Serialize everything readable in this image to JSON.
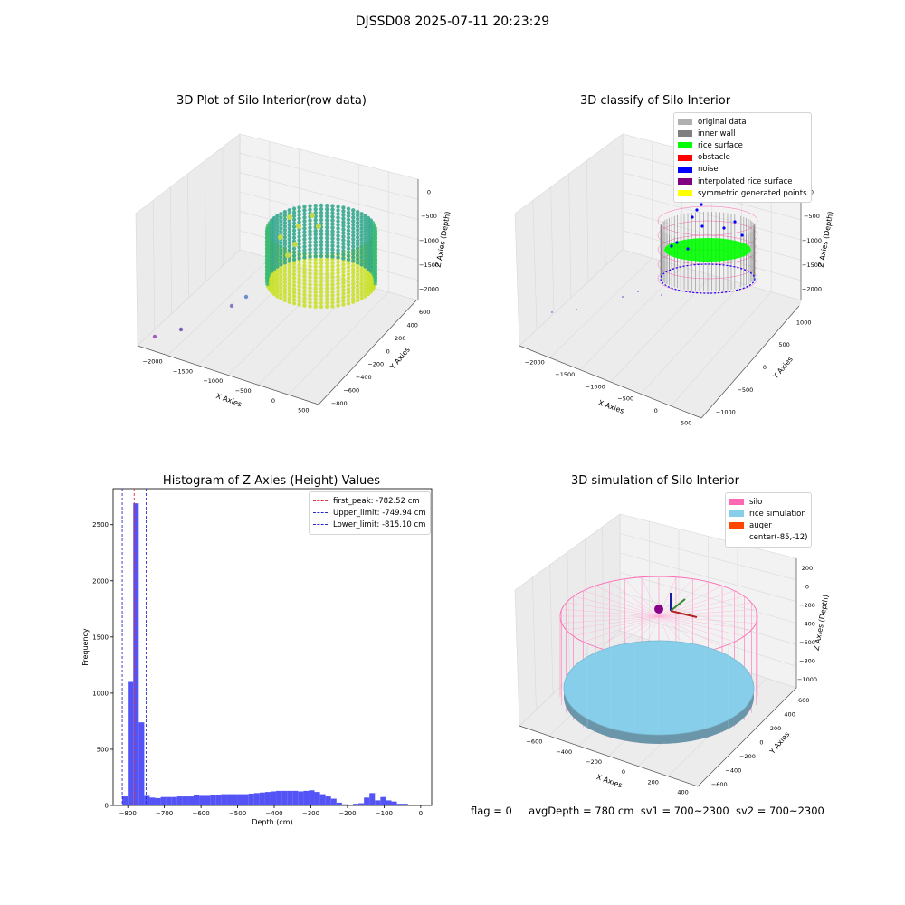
{
  "suptitle": "DJSSD08 2025-07-11 20:23:29",
  "footer": {
    "flag": "flag = 0",
    "avg_depth": "avgDepth = 780 cm",
    "sv1": "sv1 = 700~2300",
    "sv2": "sv2 = 700~2300"
  },
  "colors": {
    "histogram_bar": "#4a4af5",
    "first_peak_line": "#e03030",
    "limit_line": "#2a2ad0",
    "silo": "#ff69b4",
    "rice_simulation": "#87ceeb",
    "auger": "#ff4500",
    "original_data": "#b0b0b0",
    "inner_wall": "#808080",
    "rice_surface": "#00ff00",
    "obstacle": "#ff0000",
    "noise": "#0000ff",
    "interpolated_rice_surface": "#800080",
    "symmetric_generated_points": "#ffff00"
  },
  "panels": {
    "raw": {
      "title": "3D Plot of Silo Interior(row data)",
      "xlabel": "X Axies",
      "ylabel": "Y Axies",
      "zlabel": "Z Axies (Depth)",
      "x_ticks": [
        "-2000",
        "-1500",
        "-1000",
        "-500",
        "0",
        "500"
      ],
      "y_ticks": [
        "600",
        "400",
        "200",
        "0",
        "-200",
        "-400",
        "-600",
        "-800"
      ],
      "z_ticks": [
        "0",
        "-500",
        "-1000",
        "-1500",
        "-2000"
      ]
    },
    "classify": {
      "title": "3D classify of Silo Interior",
      "xlabel": "X Axies",
      "ylabel": "Y Axies",
      "zlabel": "Z Axies (Depth)",
      "x_ticks": [
        "-2000",
        "-1500",
        "-1000",
        "-500",
        "0",
        "500"
      ],
      "y_ticks": [
        "1000",
        "500",
        "0",
        "-500",
        "-1000"
      ],
      "z_ticks": [
        "0",
        "-500",
        "-1000",
        "-1500",
        "-2000"
      ],
      "legend": [
        "original data",
        "inner wall",
        "rice surface",
        "obstacle",
        "noise",
        "interpolated rice surface",
        "symmetric generated points"
      ]
    },
    "simulation": {
      "title": "3D simulation of Silo Interior",
      "xlabel": "X Axies",
      "ylabel": "Y Axies",
      "zlabel": "Z Axies (Depth)",
      "x_ticks": [
        "-600",
        "-400",
        "-200",
        "0",
        "200",
        "400"
      ],
      "y_ticks": [
        "600",
        "400",
        "200",
        "0",
        "-200",
        "-400",
        "-600"
      ],
      "z_ticks": [
        "200",
        "0",
        "-200",
        "-400",
        "-600",
        "-800",
        "-1000"
      ],
      "legend": [
        "silo",
        "rice simulation",
        "auger",
        "center(-85,-12)"
      ]
    }
  },
  "chart_data": {
    "type": "bar",
    "title": "Histogram of Z-Axies (Height) Values",
    "xlabel": "Depth (cm)",
    "ylabel": "Frequency",
    "xlim": [
      -840,
      30
    ],
    "ylim": [
      0,
      2820
    ],
    "x_ticks": [
      -800,
      -700,
      -600,
      -500,
      -400,
      -300,
      -200,
      -100,
      0
    ],
    "y_ticks": [
      0,
      500,
      1000,
      1500,
      2000,
      2500
    ],
    "bin_width": 15,
    "bins_start": [
      -815,
      -800,
      -785,
      -770,
      -755,
      -740,
      -725,
      -710,
      -695,
      -680,
      -665,
      -650,
      -635,
      -620,
      -605,
      -590,
      -575,
      -560,
      -545,
      -530,
      -515,
      -500,
      -485,
      -470,
      -455,
      -440,
      -425,
      -410,
      -395,
      -380,
      -365,
      -350,
      -335,
      -320,
      -305,
      -290,
      -275,
      -260,
      -245,
      -230,
      -215,
      -200,
      -185,
      -170,
      -155,
      -140,
      -125,
      -110,
      -95,
      -80,
      -65,
      -50,
      -35,
      -20
    ],
    "values": [
      80,
      1100,
      2690,
      740,
      85,
      70,
      65,
      75,
      75,
      75,
      80,
      80,
      80,
      95,
      85,
      85,
      90,
      90,
      100,
      100,
      100,
      100,
      100,
      105,
      110,
      115,
      120,
      125,
      130,
      130,
      130,
      130,
      125,
      130,
      135,
      120,
      100,
      80,
      60,
      25,
      10,
      5,
      15,
      20,
      70,
      110,
      45,
      75,
      45,
      35,
      15,
      15,
      5,
      0
    ],
    "vlines": [
      {
        "label": "first_peak: -782.52 cm",
        "x": -782.52,
        "style": "red-dashed"
      },
      {
        "label": "Upper_limit: -749.94 cm",
        "x": -749.94,
        "style": "blue-dashed"
      },
      {
        "label": "Lower_limit: -815.10 cm",
        "x": -815.1,
        "style": "blue-dashed"
      }
    ],
    "legend_position": "upper right"
  }
}
